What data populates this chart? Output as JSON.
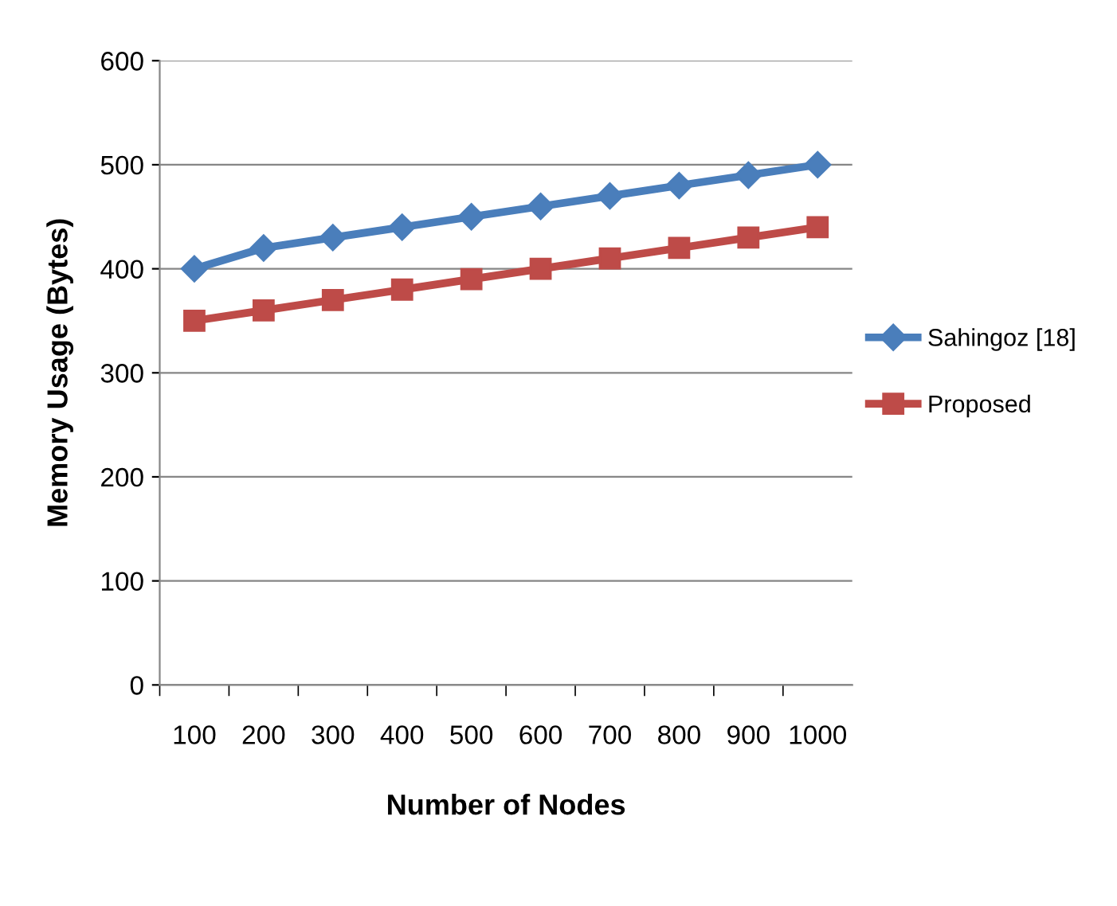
{
  "chart_data": {
    "type": "line",
    "xlabel": "Number of Nodes",
    "ylabel": "Memory Usage (Bytes)",
    "categories": [
      "100",
      "200",
      "300",
      "400",
      "500",
      "600",
      "700",
      "800",
      "900",
      "1000"
    ],
    "series": [
      {
        "name": "Sahingoz [18]",
        "color": "#4a7ebb",
        "marker": "diamond",
        "values": [
          400,
          420,
          430,
          440,
          450,
          460,
          470,
          480,
          490,
          500
        ]
      },
      {
        "name": "Proposed",
        "color": "#be4b48",
        "marker": "square",
        "values": [
          350,
          360,
          370,
          380,
          390,
          400,
          410,
          420,
          430,
          440
        ]
      }
    ],
    "ylim": [
      0,
      600
    ],
    "yticks": [
      0,
      100,
      200,
      300,
      400,
      500,
      600
    ],
    "grid": "y",
    "legend": "right",
    "line_style": "solid"
  }
}
